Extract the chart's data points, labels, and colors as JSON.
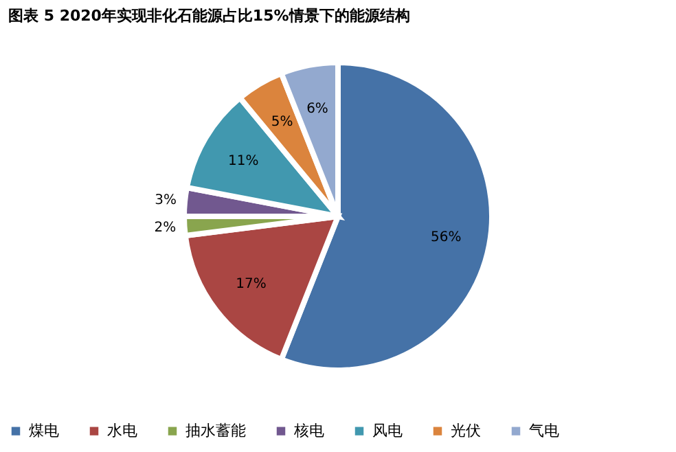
{
  "chart_data": {
    "type": "pie",
    "title": "图表 5 2020年实现非化石能源占比15%情景下的能源结构",
    "categories": [
      "煤电",
      "水电",
      "抽水蓄能",
      "核电",
      "风电",
      "光伏",
      "气电"
    ],
    "values": [
      56,
      17,
      2,
      3,
      11,
      5,
      6
    ],
    "value_labels": [
      "56%",
      "17%",
      "2%",
      "3%",
      "11%",
      "5%",
      "6%"
    ],
    "colors": [
      "#4572a7",
      "#aa4643",
      "#89a54e",
      "#71588f",
      "#4198af",
      "#db843d",
      "#93a9cf"
    ],
    "legend": "bottom"
  }
}
